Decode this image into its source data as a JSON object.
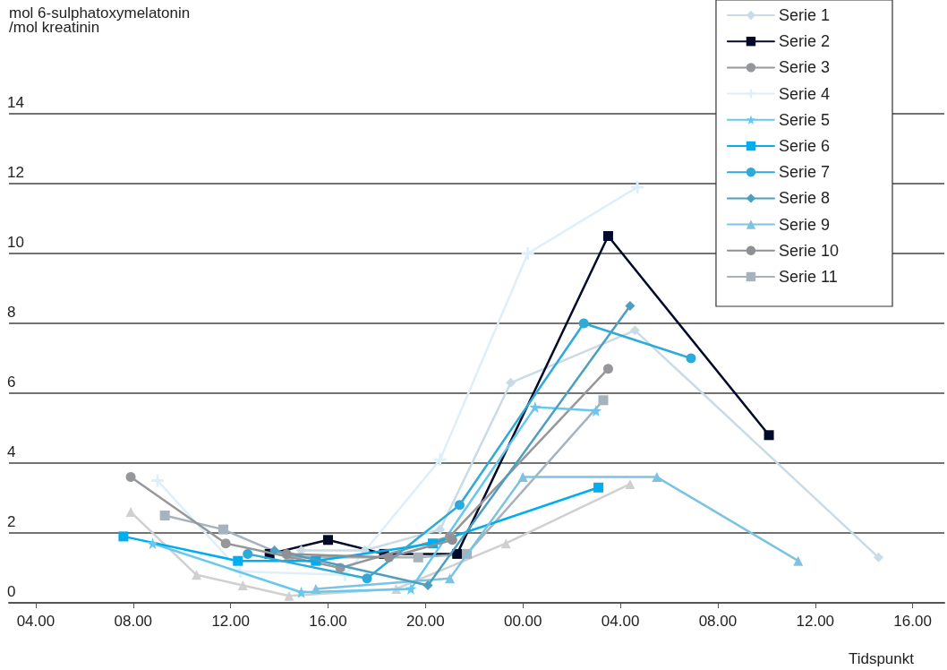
{
  "chart_data": {
    "type": "line",
    "ylabel": "mol 6-sulphatoxymelatonin\n/mol kreatinin",
    "xlabel": "Tidspunkt",
    "xlim": [
      "--01-01T02:54",
      "--01-02T17:18"
    ],
    "xticks": [
      {
        "value": "--01-01T04:00",
        "label": "04.00"
      },
      {
        "value": "--01-01T08:00",
        "label": "08.00"
      },
      {
        "value": "--01-01T12:00",
        "label": "12.00"
      },
      {
        "value": "--01-01T16:00",
        "label": "16.00"
      },
      {
        "value": "--01-01T20:00",
        "label": "20.00"
      },
      {
        "value": "--01-02T00:00",
        "label": "00.00"
      },
      {
        "value": "--01-02T04:00",
        "label": "04.00"
      },
      {
        "value": "--01-02T08:00",
        "label": "08.00"
      },
      {
        "value": "--01-02T12:00",
        "label": "12.00"
      },
      {
        "value": "--01-02T16:00",
        "label": "16.00"
      }
    ],
    "ylim": [
      0,
      14
    ],
    "yticks": [
      0,
      2,
      4,
      6,
      8,
      10,
      12,
      14
    ],
    "grid": "y",
    "legend": "top right",
    "series": [
      {
        "name": "Serie 1",
        "color": "#c9dce6",
        "marker": "diamond",
        "x": [
          "--01-01T14:54",
          "--01-01T17:30",
          "--01-01T20:36",
          "--01-01T23:30",
          "--01-02T04:36",
          "--01-02T14:36"
        ],
        "values": [
          1.5,
          1.5,
          2.1,
          6.3,
          7.8,
          1.3
        ]
      },
      {
        "name": "Serie 2",
        "color": "#020a2a",
        "marker": "square",
        "x": [
          "--01-01T13:36",
          "--01-01T16:00",
          "--01-01T18:18",
          "--01-01T21:18",
          "--01-02T03:30",
          "--01-02T10:06"
        ],
        "values": [
          1.4,
          1.8,
          1.4,
          1.4,
          10.5,
          4.8
        ]
      },
      {
        "name": "Serie 3",
        "color": "#96979b",
        "marker": "circle",
        "x": [
          "--01-01T07:54",
          "--01-01T11:48",
          "--01-01T16:30",
          "--01-01T21:00",
          "--01-02T03:30"
        ],
        "values": [
          3.6,
          1.7,
          1.0,
          1.9,
          6.7
        ]
      },
      {
        "name": "Serie 4",
        "color": "#ddf0fa",
        "marker": "cross",
        "x": [
          "--01-01T09:00",
          "--01-01T12:24",
          "--01-01T16:42",
          "--01-01T20:36",
          "--01-02T00:12",
          "--01-02T04:42"
        ],
        "values": [
          3.5,
          0.9,
          0.8,
          4.1,
          10.0,
          11.9
        ]
      },
      {
        "name": "Serie 5",
        "color": "#66c8ef",
        "marker": "star",
        "x": [
          "--01-01T08:48",
          "--01-01T14:54",
          "--01-01T19:24",
          "--01-02T00:30",
          "--01-02T03:00"
        ],
        "values": [
          1.7,
          0.3,
          0.4,
          5.6,
          5.5
        ]
      },
      {
        "name": "Serie 6",
        "color": "#00aeef",
        "marker": "square",
        "x": [
          "--01-01T07:36",
          "--01-01T12:18",
          "--01-01T15:30",
          "--01-01T20:18",
          "--01-02T03:06"
        ],
        "values": [
          1.9,
          1.2,
          1.2,
          1.7,
          3.3
        ]
      },
      {
        "name": "Serie 7",
        "color": "#2eaad8",
        "marker": "circle",
        "x": [
          "--01-01T12:42",
          "--01-01T17:36",
          "--01-01T21:24",
          "--01-02T02:30",
          "--01-02T06:54"
        ],
        "values": [
          1.4,
          0.7,
          2.8,
          8.0,
          7.0
        ]
      },
      {
        "name": "Serie 8",
        "color": "#4e9fbf",
        "marker": "diamond",
        "x": [
          "--01-01T13:48",
          "--01-01T20:06",
          "--01-02T04:24"
        ],
        "values": [
          1.5,
          0.5,
          8.5
        ]
      },
      {
        "name": "Serie 9",
        "color": "#7cc3e2",
        "marker": "triangle",
        "x": [
          "--01-01T15:30",
          "--01-01T21:00",
          "--01-02T00:00",
          "--01-02T05:30",
          "--01-02T11:18"
        ],
        "values": [
          0.4,
          0.7,
          3.6,
          3.6,
          1.2
        ]
      },
      {
        "name": "Serie 10",
        "color": "#8f9094",
        "marker": "circle",
        "x": [
          "--01-01T14:18",
          "--01-01T18:30",
          "--01-01T21:06"
        ],
        "values": [
          1.4,
          1.3,
          1.8
        ]
      },
      {
        "name": "Serie 11",
        "color": "#a7b3bc",
        "marker": "square",
        "x": [
          "--01-01T09:18",
          "--01-01T11:42",
          "--01-01T14:24",
          "--01-01T19:42",
          "--01-01T21:42",
          "--01-02T03:18"
        ],
        "values": [
          2.5,
          2.1,
          1.3,
          1.3,
          1.4,
          5.8
        ]
      },
      {
        "color": "#d0d0d0",
        "marker": "triangle",
        "x": [
          "--01-01T07:54",
          "--01-01T10:36",
          "--01-01T12:30",
          "--01-01T14:24",
          "--01-01T18:48",
          "--01-01T23:18",
          "--01-02T04:24"
        ],
        "values": [
          2.6,
          0.8,
          0.5,
          0.2,
          0.4,
          1.7,
          3.4
        ]
      }
    ]
  }
}
